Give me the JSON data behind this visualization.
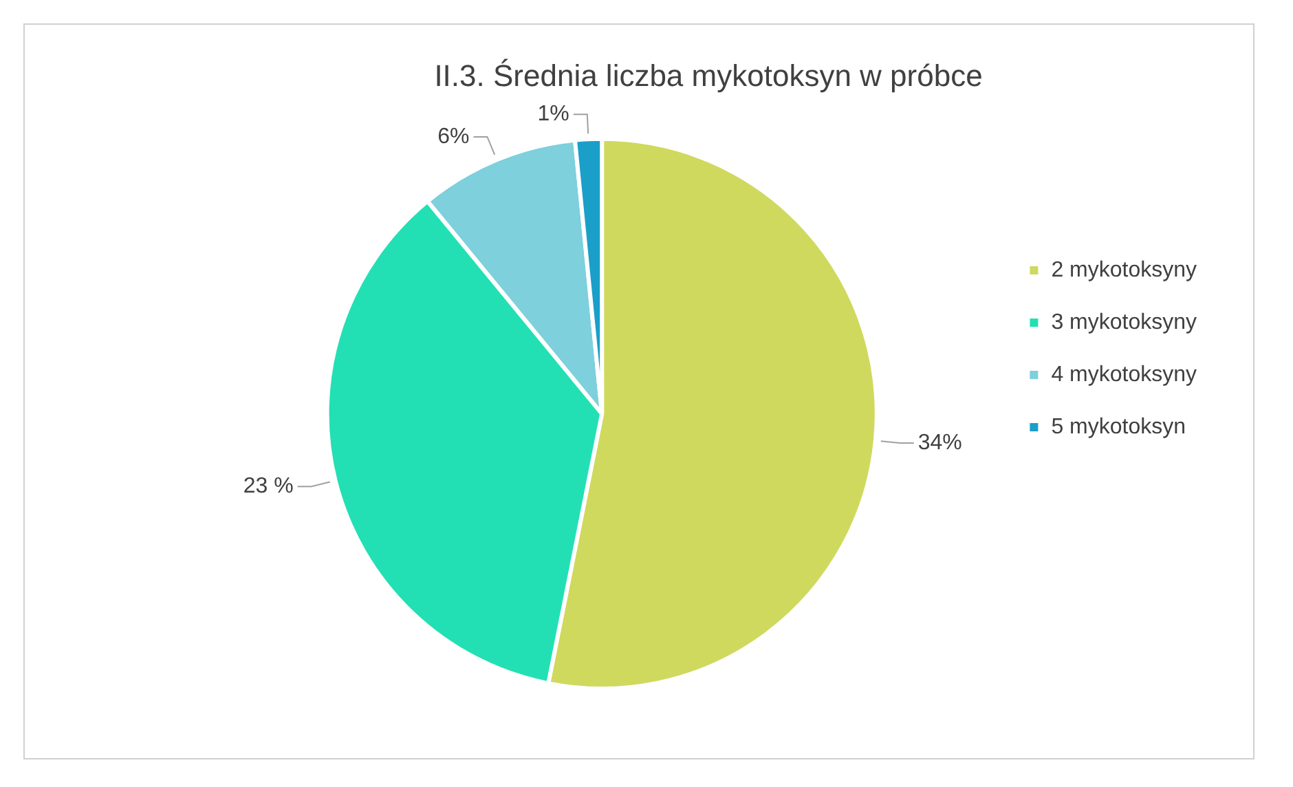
{
  "chart_data": {
    "type": "pie",
    "title": "II.3. Średnia liczba mykotoksyn w próbce",
    "categories": [
      "2 mykotoksyny",
      "3 mykotoksyny",
      "4 mykotoksyny",
      "5 mykotoksyn"
    ],
    "values": [
      34,
      23,
      6,
      1
    ],
    "colors": [
      "#cfd95e",
      "#22e0b4",
      "#7dd0dc",
      "#1a9fc9"
    ],
    "value_labels": [
      "34%",
      "23 %",
      "6%",
      "1%"
    ],
    "legend": "right"
  }
}
